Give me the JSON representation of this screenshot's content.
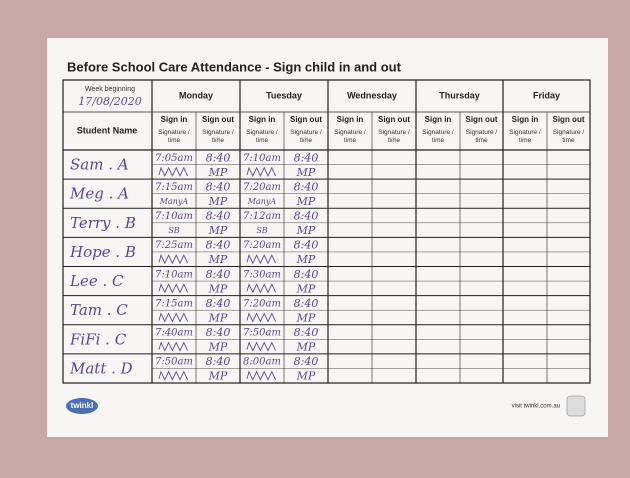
{
  "sheet": {
    "title": "Before School Care Attendance - Sign child in and out",
    "week_label": "Week beginning",
    "week": "17/08/2020",
    "student_header": "Student Name",
    "days": [
      "Monday",
      "Tuesday",
      "Wednesday",
      "Thursday",
      "Friday"
    ],
    "sign_in": "Sign in",
    "sign_out": "Sign out",
    "signature_time": "Signature / time",
    "rows": [
      {
        "name": "Sam . A",
        "entries": [
          {
            "in": "7:05am",
            "out": "8:40",
            "out_sig": "MP"
          },
          {
            "in": "7:10am",
            "out": "8:40",
            "out_sig": "MP"
          }
        ]
      },
      {
        "name": "Meg . A",
        "entries": [
          {
            "in": "7:15am",
            "in_sig": "ManyA",
            "out": "8:40",
            "out_sig": "MP"
          },
          {
            "in": "7:20am",
            "in_sig": "ManyA",
            "out": "8:40",
            "out_sig": "MP"
          }
        ]
      },
      {
        "name": "Terry . B",
        "entries": [
          {
            "in": "7:10am",
            "in_sig": "SB",
            "out": "8:40",
            "out_sig": "MP"
          },
          {
            "in": "7:12am",
            "in_sig": "SB",
            "out": "8:40",
            "out_sig": "MP"
          }
        ]
      },
      {
        "name": "Hope . B",
        "entries": [
          {
            "in": "7:25am",
            "out": "8:40",
            "out_sig": "MP"
          },
          {
            "in": "7:20am",
            "out": "8:40",
            "out_sig": "MP"
          }
        ]
      },
      {
        "name": "Lee . C",
        "entries": [
          {
            "in": "7:10am",
            "out": "8:40",
            "out_sig": "MP"
          },
          {
            "in": "7:30am",
            "out": "8:40",
            "out_sig": "MP"
          }
        ]
      },
      {
        "name": "Tam . C",
        "entries": [
          {
            "in": "7:15am",
            "out": "8:40",
            "out_sig": "MP"
          },
          {
            "in": "7:20am",
            "out": "8:40",
            "out_sig": "MP"
          }
        ]
      },
      {
        "name": "FiFi . C",
        "entries": [
          {
            "in": "7:40am",
            "out": "8:40",
            "out_sig": "MP"
          },
          {
            "in": "7:50am",
            "out": "8:40",
            "out_sig": "MP"
          }
        ]
      },
      {
        "name": "Matt . D",
        "entries": [
          {
            "in": "7:50am",
            "out": "8:40",
            "out_sig": "MP"
          },
          {
            "in": "8:00am",
            "out": "8:40",
            "out_sig": "MP"
          }
        ]
      }
    ]
  },
  "footer": {
    "logo": "twinkl",
    "url": "visit twinkl.com.au"
  }
}
